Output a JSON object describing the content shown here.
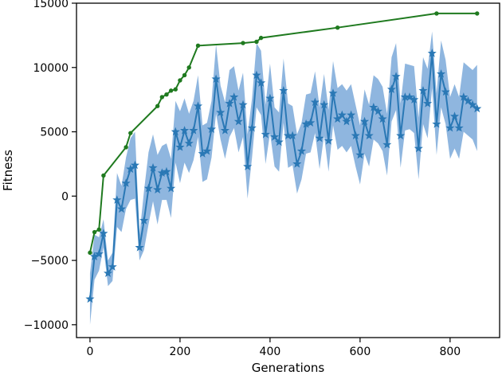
{
  "chart_data": {
    "type": "line",
    "title": "",
    "xlabel": "Generations",
    "ylabel": "Fitness",
    "xlim": [
      -30,
      910
    ],
    "ylim": [
      -11000,
      15000
    ],
    "xticks": [
      0,
      200,
      400,
      600,
      800
    ],
    "yticks": [
      -10000,
      -5000,
      0,
      5000,
      10000,
      15000
    ],
    "grid": false,
    "legend": "none",
    "series": [
      {
        "color": "#1f7a1f",
        "marker": "circle",
        "x": [
          0,
          10,
          20,
          30,
          80,
          90,
          150,
          160,
          170,
          180,
          190,
          200,
          210,
          220,
          240,
          340,
          370,
          380,
          550,
          770,
          860
        ],
        "values": [
          -4400,
          -2800,
          -2600,
          1600,
          3800,
          4900,
          7000,
          7700,
          7900,
          8200,
          8300,
          9000,
          9400,
          10000,
          11700,
          11900,
          12000,
          12300,
          13100,
          14200,
          14200
        ]
      },
      {
        "color": "#2a78b5",
        "marker": "star",
        "band_color": "#6a9ed4",
        "x": [
          0,
          10,
          20,
          30,
          40,
          50,
          60,
          70,
          80,
          90,
          100,
          110,
          120,
          130,
          140,
          150,
          160,
          170,
          180,
          190,
          200,
          210,
          220,
          230,
          240,
          250,
          260,
          270,
          280,
          290,
          300,
          310,
          320,
          330,
          340,
          350,
          360,
          370,
          380,
          390,
          400,
          410,
          420,
          430,
          440,
          450,
          460,
          470,
          480,
          490,
          500,
          510,
          520,
          530,
          540,
          550,
          560,
          570,
          580,
          590,
          600,
          610,
          620,
          630,
          640,
          650,
          660,
          670,
          680,
          690,
          700,
          710,
          720,
          730,
          740,
          750,
          760,
          770,
          780,
          790,
          800,
          810,
          820,
          830,
          840,
          850,
          860
        ],
        "values": [
          -8000,
          -4700,
          -4500,
          -2900,
          -6000,
          -5500,
          -300,
          -1000,
          1000,
          2100,
          2400,
          -4000,
          -1900,
          600,
          2200,
          500,
          1800,
          1900,
          600,
          5000,
          3800,
          5100,
          4100,
          5100,
          7000,
          3300,
          3500,
          5200,
          9100,
          6500,
          5100,
          7200,
          7700,
          5800,
          7100,
          2300,
          5300,
          9400,
          8800,
          4800,
          7600,
          4600,
          4200,
          8200,
          4700,
          4700,
          2500,
          3500,
          5600,
          5700,
          7300,
          4500,
          7100,
          4300,
          8000,
          6000,
          6300,
          5800,
          6300,
          4700,
          3200,
          5800,
          4700,
          6900,
          6600,
          6000,
          4000,
          8300,
          9300,
          4700,
          7700,
          7700,
          7500,
          3700,
          8200,
          7200,
          11100,
          5600,
          9500,
          8100,
          5300,
          6200,
          5300,
          7700,
          7400,
          7100,
          6800
        ],
        "band_low": [
          -10000,
          -6500,
          -5800,
          -4000,
          -7000,
          -6600,
          -2400,
          -2800,
          -1000,
          -300,
          -200,
          -5000,
          -4200,
          -2200,
          -400,
          -2200,
          -300,
          -300,
          -1700,
          2600,
          1000,
          2600,
          1800,
          2800,
          4600,
          1100,
          1300,
          3000,
          6400,
          4400,
          2900,
          4600,
          5300,
          3400,
          4600,
          -200,
          3000,
          6900,
          6300,
          2500,
          4900,
          2300,
          1900,
          5700,
          2200,
          2400,
          200,
          1300,
          3300,
          3400,
          4900,
          2100,
          4700,
          1900,
          5500,
          3600,
          3900,
          3400,
          3900,
          2300,
          900,
          3300,
          2300,
          4400,
          4100,
          3500,
          1600,
          5800,
          6700,
          2200,
          5100,
          5200,
          4900,
          1300,
          5600,
          4500,
          8400,
          3200,
          6900,
          5600,
          2900,
          3700,
          2900,
          5000,
          4700,
          4400,
          3500
        ],
        "band_high": [
          -6000,
          -3000,
          -3200,
          -1800,
          -5000,
          -4400,
          1800,
          800,
          3000,
          4500,
          5000,
          -3000,
          400,
          3400,
          4800,
          3200,
          3900,
          4100,
          2900,
          7400,
          6600,
          7600,
          6400,
          7400,
          9400,
          5500,
          5700,
          7400,
          11800,
          8600,
          7300,
          9800,
          10100,
          8200,
          9600,
          4800,
          7600,
          11900,
          11300,
          7100,
          10300,
          6900,
          6500,
          10700,
          7200,
          7000,
          4800,
          5700,
          7900,
          8000,
          9700,
          6900,
          9500,
          6700,
          10500,
          8400,
          8700,
          8200,
          8700,
          7100,
          5500,
          8300,
          7100,
          9400,
          9100,
          8500,
          6400,
          10800,
          11900,
          7200,
          10300,
          10200,
          10100,
          6100,
          10800,
          9900,
          12800,
          8000,
          12100,
          10600,
          7700,
          8700,
          7700,
          10400,
          10100,
          9800,
          10200
        ]
      }
    ]
  }
}
